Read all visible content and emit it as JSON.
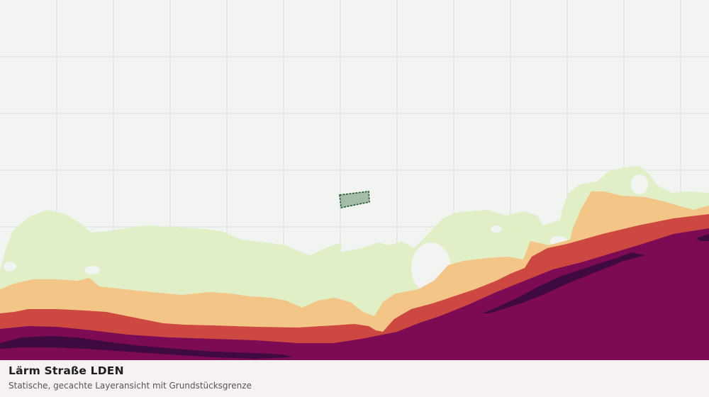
{
  "caption": {
    "title": "Lärm Straße LDEN",
    "subtitle": "Statische, gecachte Layeransicht mit Grundstücksgrenze"
  },
  "map": {
    "basemap_color": "#f2f4f1",
    "grid_color": "#dcdedb",
    "noise_bands": [
      {
        "name": "band-lowest",
        "color": "#e1efc6"
      },
      {
        "name": "band-low",
        "color": "#f3c586"
      },
      {
        "name": "band-mid",
        "color": "#cd4840"
      },
      {
        "name": "band-high",
        "color": "#7d0a55"
      },
      {
        "name": "band-highest",
        "color": "#3f0942"
      }
    ],
    "parcel": {
      "fill": "#a4bca8",
      "stroke": "#1f5a33"
    }
  }
}
